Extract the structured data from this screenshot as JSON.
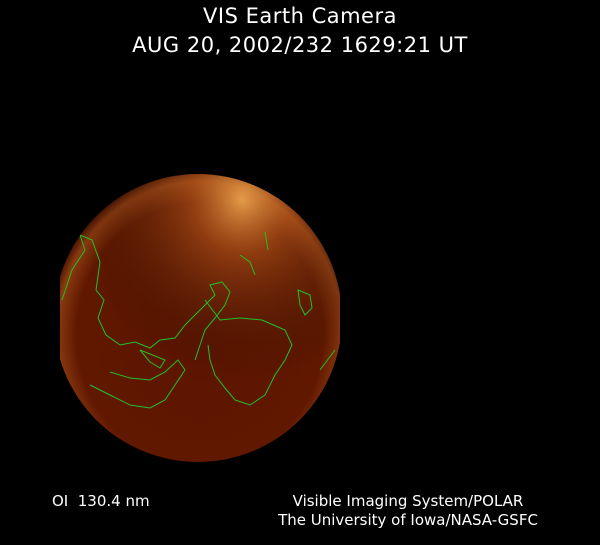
{
  "header": {
    "title": "VIS Earth Camera",
    "timestamp": "AUG 20, 2002/232 1629:21 UT"
  },
  "footer": {
    "wavelength": "OI  130.4 nm",
    "credit_line1": "Visible Imaging System/POLAR",
    "credit_line2": "The University of Iowa/NASA-GSFC"
  },
  "colors": {
    "earth": "#5a1200",
    "aurora": "#f0a040",
    "coastline": "#22c022"
  }
}
